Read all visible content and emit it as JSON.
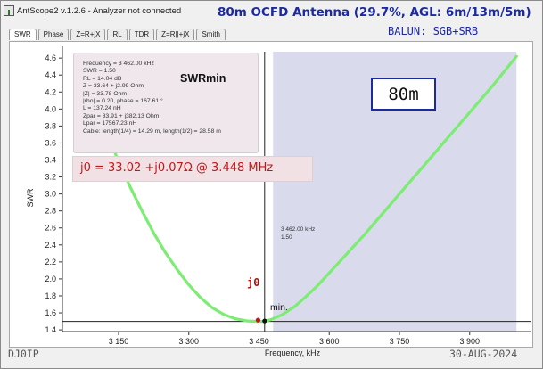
{
  "window": {
    "title": "AntScope2 v.1.2.6 - Analyzer not connected",
    "app_icon": "antenna-icon"
  },
  "headline": "80m OCFD Antenna (29.7%, AGL: 6m/13m/5m)",
  "balun_note": "BALUN:  SGB+SRB",
  "tabs": [
    {
      "label": "SWR",
      "active": true
    },
    {
      "label": "Phase"
    },
    {
      "label": "Z=R+jX"
    },
    {
      "label": "RL"
    },
    {
      "label": "TDR"
    },
    {
      "label": "Z=R||+jX"
    },
    {
      "label": "Smith"
    }
  ],
  "info_box": {
    "lines": [
      "Frequency = 3 462.00 kHz",
      "SWR = 1.50",
      "RL = 14.04 dB",
      "Z = 33.64 + j2.99 Ohm",
      "|Z| = 33.78 Ohm",
      "|rho| = 0.20, phase = 167.61 °",
      "L = 137.24 nH",
      "Zpar = 33.91 + j382.13 Ohm",
      "Lpar = 17567.23 nH",
      "Cable: length(1/4) = 14.29 m, length(1/2) = 28.58 m"
    ]
  },
  "swrmin_label": "SWRmin",
  "band_label": "80m",
  "j0_note": "j0 = 33.02 +j0.07Ω @ 3.448 MHz",
  "cursor_text": {
    "line1": "3 462.00 kHz",
    "line2": "1.50"
  },
  "markers": {
    "j0": "j0",
    "min": "min."
  },
  "footer": {
    "left": "DJ0IP",
    "right": "30-AUG-2024"
  },
  "colors": {
    "curve": "#7cec72",
    "band_fill": "#d9dbec",
    "accent": "#1c2aa0",
    "note_red": "#c01818"
  },
  "chart_data": {
    "type": "line",
    "xlabel": "Frequency, kHz",
    "ylabel": "SWR",
    "xlim": [
      3030,
      4030
    ],
    "ylim": [
      1.38,
      4.78
    ],
    "x_ticks": [
      3150,
      3300,
      3450,
      3600,
      3750,
      3900
    ],
    "x_tick_labels": [
      "3 150",
      "3 300",
      "3 450",
      "3 600",
      "3 750",
      "3 900"
    ],
    "y_ticks": [
      1.4,
      1.6,
      1.8,
      2.0,
      2.2,
      2.4,
      2.6,
      2.8,
      3.0,
      3.2,
      3.4,
      3.6,
      3.8,
      4.0,
      4.2,
      4.4,
      4.6
    ],
    "y_tick_labels": [
      "1.4",
      "1.6",
      "1.8",
      "2.0",
      "2.2",
      "2.4",
      "2.6",
      "2.8",
      "3.0",
      "3.2",
      "3.4",
      "3.6",
      "3.8",
      "4.0",
      "4.2",
      "4.4",
      "4.6"
    ],
    "band_span": [
      3480,
      4000
    ],
    "cursor": {
      "x": 3462,
      "y": 1.5
    },
    "series": [
      {
        "x": [
          3125,
          3150,
          3175,
          3200,
          3225,
          3250,
          3275,
          3300,
          3325,
          3350,
          3375,
          3400,
          3425,
          3448,
          3460,
          3475,
          3500,
          3525,
          3550,
          3575,
          3600,
          3625,
          3650,
          3675,
          3700,
          3725,
          3750,
          3775,
          3800,
          3825,
          3850,
          3875,
          3900,
          3925,
          3950,
          3975,
          4000
        ],
        "y": [
          3.72,
          3.38,
          3.08,
          2.8,
          2.54,
          2.31,
          2.11,
          1.93,
          1.78,
          1.66,
          1.58,
          1.53,
          1.505,
          1.5,
          1.5,
          1.52,
          1.58,
          1.67,
          1.79,
          1.92,
          2.07,
          2.22,
          2.37,
          2.52,
          2.68,
          2.84,
          3.0,
          3.16,
          3.32,
          3.48,
          3.64,
          3.8,
          3.96,
          4.12,
          4.28,
          4.45,
          4.62
        ]
      }
    ],
    "points": [
      {
        "name": "j0",
        "x": 3448,
        "y": 1.515
      },
      {
        "name": "min",
        "x": 3462,
        "y": 1.505
      }
    ],
    "grid": false
  }
}
